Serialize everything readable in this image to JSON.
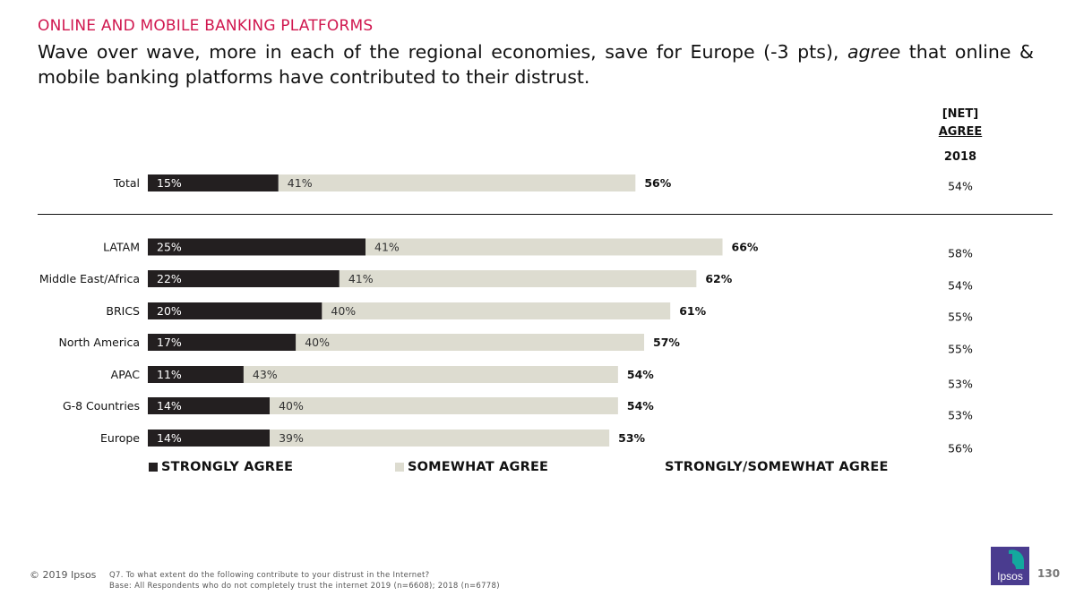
{
  "header": {
    "kicker": "ONLINE AND MOBILE BANKING PLATFORMS",
    "headline_part1": "Wave over wave, more in each of the regional economies, save for Europe (-3 pts), ",
    "headline_emphasis": "agree",
    "headline_part2": " that online & mobile banking platforms have contributed to their distrust."
  },
  "net_column": {
    "line1": "[NET]",
    "line2": "AGREE",
    "year": "2018"
  },
  "colors": {
    "accent": "#d0174f",
    "strongly": "#231f20",
    "somewhat": "#dddcd0",
    "logo": "#4a3c8f",
    "logo_accent": "#13a89e"
  },
  "chart_data": {
    "type": "bar",
    "stacked": true,
    "orientation": "horizontal",
    "categories": [
      "Total",
      "LATAM",
      "Middle East/Africa",
      "BRICS",
      "North America",
      "APAC",
      "G-8 Countries",
      "Europe"
    ],
    "series": [
      {
        "name": "STRONGLY AGREE",
        "values": [
          15,
          25,
          22,
          20,
          17,
          11,
          14,
          14
        ]
      },
      {
        "name": "SOMEWHAT AGREE",
        "values": [
          41,
          41,
          41,
          40,
          40,
          43,
          40,
          39
        ]
      }
    ],
    "totals": {
      "name": "STRONGLY/SOMEWHAT AGREE",
      "values": [
        56,
        66,
        62,
        61,
        57,
        54,
        54,
        53
      ]
    },
    "net_2018": [
      54,
      58,
      54,
      55,
      55,
      53,
      53,
      56
    ],
    "value_suffix": "%",
    "xlim": [
      0,
      100
    ],
    "separator_after": "Total",
    "legend_position": "bottom"
  },
  "footer": {
    "copyright": "© 2019 Ipsos",
    "question": "Q7.  To what extent do the following contribute to your distrust in the Internet?",
    "base": "Base: All Respondents who do not completely trust the internet 2019 (n=6608); 2018 (n=6778)",
    "logo_text": "Ipsos",
    "page": "130"
  }
}
